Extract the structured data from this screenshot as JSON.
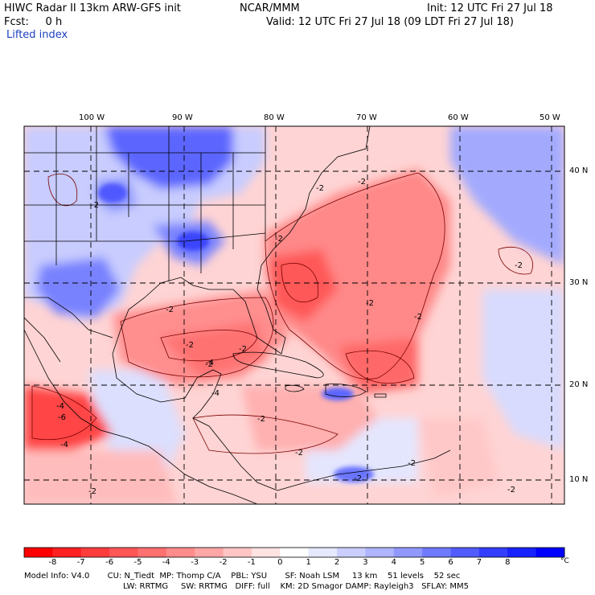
{
  "header": {
    "title": "HIWC Radar II 13km ARW-GFS init",
    "org": "NCAR/MMM",
    "init": "Init: 12 UTC Fri 27 Jul 18",
    "fcst": "Fcst:     0 h",
    "valid": "Valid: 12 UTC Fri 27 Jul 18 (09 LDT Fri 27 Jul 18)",
    "field": "Lifted index"
  },
  "map": {
    "lon_labels": [
      "100 W",
      "90 W",
      "80 W",
      "70 W",
      "60 W",
      "50 W"
    ],
    "lat_labels": [
      "40 N",
      "30 N",
      "20 N",
      "10 N"
    ],
    "contour_labels": [
      "-2",
      "-2",
      "-2",
      "-2",
      "-2",
      "-2",
      "-2",
      "-2",
      "-2",
      "-2",
      "-2",
      "-2",
      "-2",
      "-2",
      "-2",
      "-4",
      "-4",
      "-4",
      "-4",
      "-6",
      "-2",
      "-2"
    ]
  },
  "colorbar": {
    "labels": [
      "-8",
      "-7",
      "-6",
      "-5",
      "-4",
      "-3",
      "-2",
      "-1",
      "0",
      "1",
      "2",
      "3",
      "4",
      "5",
      "6",
      "7",
      "8"
    ],
    "unit": "°C",
    "colors": [
      "#ff0000",
      "#ff2020",
      "#ff3c3c",
      "#ff5656",
      "#ff7070",
      "#ff8c8c",
      "#ffa6a6",
      "#ffc4c4",
      "#ffe2e2",
      "#fefefe",
      "#e6e8fe",
      "#cacefe",
      "#aeb4fe",
      "#9098fe",
      "#707afe",
      "#525cfe",
      "#343efe",
      "#1822fe",
      "#0000ff"
    ]
  },
  "footer": {
    "line1": "Model Info: V4.0       CU: N_Tiedt  MP: Thomp C/A    PBL: YSU       SF: Noah LSM     13 km    51 levels    52 sec",
    "line2": "LW: RRTMG     SW: RRTMG   DIFF: full    KM: 2D Smagor DAMP: Rayleigh3   SFLAY: MM5"
  }
}
